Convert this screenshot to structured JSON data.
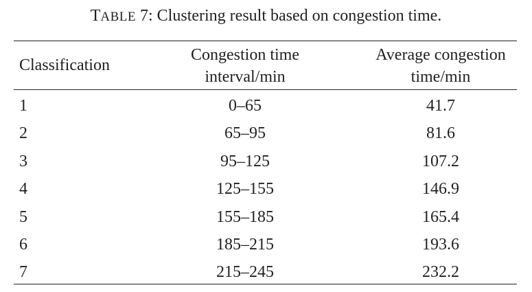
{
  "caption": {
    "label_first": "T",
    "label_rest": "ABLE",
    "label_num": "7:",
    "text": "Clustering result based on congestion time."
  },
  "table": {
    "headers": {
      "classification": "Classification",
      "interval_line1": "Congestion time",
      "interval_line2": "interval/min",
      "average_line1": "Average congestion",
      "average_line2": "time/min"
    },
    "rows": [
      {
        "classification": "1",
        "interval": "0–65",
        "average": "41.7"
      },
      {
        "classification": "2",
        "interval": "65–95",
        "average": "81.6"
      },
      {
        "classification": "3",
        "interval": "95–125",
        "average": "107.2"
      },
      {
        "classification": "4",
        "interval": "125–155",
        "average": "146.9"
      },
      {
        "classification": "5",
        "interval": "155–185",
        "average": "165.4"
      },
      {
        "classification": "6",
        "interval": "185–215",
        "average": "193.6"
      },
      {
        "classification": "7",
        "interval": "215–245",
        "average": "232.2"
      }
    ]
  }
}
